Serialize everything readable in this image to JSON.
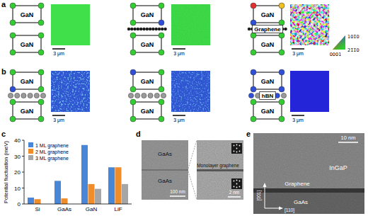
{
  "panels": {
    "a": {
      "label": "a",
      "schematics": [
        {
          "top": "GaN",
          "bottom": "GaN"
        },
        {
          "top": "GaN",
          "bottom": "GaN"
        },
        {
          "top": "GaN",
          "layer": "Graphene",
          "bottom": "GaN"
        }
      ],
      "scale_bar": "3 μm",
      "color_key": [
        "0001",
        "101̄0",
        "21̄1̄0"
      ]
    },
    "b": {
      "label": "b",
      "schematics": [
        {
          "top": "GaN",
          "bottom": "GaN"
        },
        {
          "top": "GaN",
          "bottom": "GaN"
        },
        {
          "top": "GaN",
          "layer": "hBN",
          "bottom": "GaN"
        }
      ],
      "scale_bar": "3 μm"
    },
    "c": {
      "label": "c"
    },
    "d": {
      "label": "d",
      "top": "GaAs",
      "bottom": "GaAs",
      "scale_bar": "100 nm",
      "interface": "Monolayer graphene",
      "zoom_scale_bar": "2 nm"
    },
    "e": {
      "label": "e",
      "scale_bar": "10 nm",
      "top": "InGaP",
      "interface": "Graphene",
      "bottom": "GaAs",
      "axis_vertical": "[001]",
      "axis_horizontal": "[110]"
    }
  },
  "chart_data": {
    "type": "bar",
    "ylabel": "Potential fluctuation (meV)",
    "categories": [
      "Si",
      "GaAs",
      "GaN",
      "LiF"
    ],
    "series": [
      {
        "name": "1 ML graphene",
        "color": "#4a86d8",
        "values": [
          4,
          14.5,
          37,
          23
        ]
      },
      {
        "name": "2 ML graphene",
        "color": "#f08c2a",
        "values": [
          3,
          3.5,
          12.5,
          23
        ]
      },
      {
        "name": "3 ML graphene",
        "color": "#a6a6a6",
        "values": [
          null,
          null,
          9.5,
          12.5
        ]
      }
    ],
    "ylim": [
      0,
      40
    ],
    "yticks": [
      0,
      10,
      20,
      30,
      40
    ],
    "grid": false,
    "legend": "top-left"
  }
}
